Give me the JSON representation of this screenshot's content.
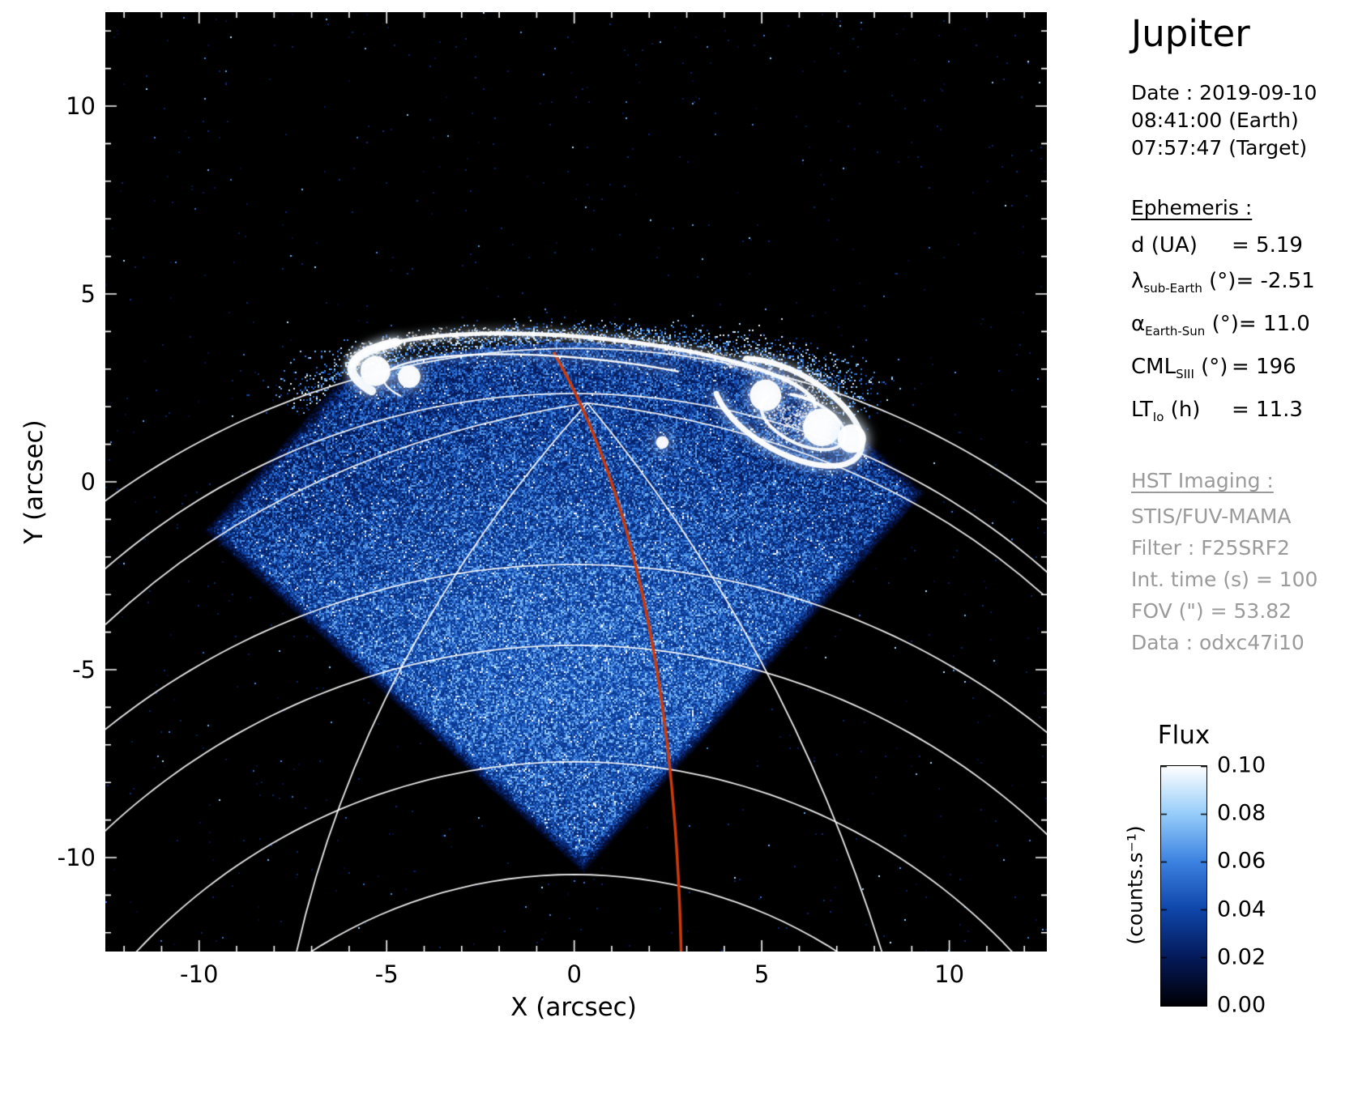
{
  "sidebar": {
    "title": "Jupiter",
    "date_lines": [
      "Date : 2019-09-10",
      "08:41:00 (Earth)",
      "07:57:47 (Target)"
    ],
    "ephemeris": {
      "heading": "Ephemeris :",
      "rows": [
        {
          "symbol": "d",
          "sub": "",
          "unit": "(UA)",
          "eq": "=",
          "value": "5.19"
        },
        {
          "symbol": "λ",
          "sub": "sub-Earth",
          "unit": "(°)",
          "eq": "=",
          "value": "-2.51"
        },
        {
          "symbol": "α",
          "sub": "Earth-Sun",
          "unit": "(°)",
          "eq": "=",
          "value": "11.0"
        },
        {
          "symbol": "CML",
          "sub": "SIII",
          "unit": "(°)",
          "eq": "=",
          "value": "196"
        },
        {
          "symbol": "LT",
          "sub": "Io",
          "unit": "(h)",
          "eq": "=",
          "value": "11.3"
        }
      ]
    },
    "hst": {
      "heading": "HST Imaging :",
      "lines": [
        "STIS/FUV-MAMA",
        "Filter : F25SRF2",
        "Int. time (s) = 100",
        "FOV (\") = 53.82",
        "Data : odxc47i10"
      ]
    }
  },
  "chart_data": {
    "type": "heatmap",
    "subject": "Jupiter FUV aurora (HST STIS/FUV-MAMA image)",
    "title": "Jupiter",
    "xlabel": "X (arcsec)",
    "ylabel": "Y (arcsec)",
    "xlim": [
      -12.5,
      12.6
    ],
    "ylim": [
      -12.5,
      12.5
    ],
    "x_ticks": [
      -10,
      -5,
      0,
      5,
      10
    ],
    "y_ticks": [
      10,
      5,
      0,
      -5,
      -10
    ],
    "background": "#000000",
    "colorbar": {
      "title": "Flux",
      "units_label": "(counts.s⁻¹)",
      "ticks": [
        "0.10",
        "0.08",
        "0.06",
        "0.04",
        "0.02",
        "0.00"
      ],
      "min": 0.0,
      "max": 0.1,
      "colors": [
        "#000006",
        "#051a5a",
        "#0f46aa",
        "#3c82e1",
        "#96cdfa",
        "#ffffff"
      ]
    },
    "overlays": {
      "fov_diamond": {
        "shape": "rotated-square",
        "cx": -0.25,
        "cy": -0.8,
        "half_diagonal": 9.65,
        "rotation_deg": 3
      },
      "planet_limb": {
        "peak_y": 3.55,
        "radius": 21.3
      },
      "lat_arcs": [
        [
          3.55,
          21.3
        ],
        [
          2.35,
          19.1
        ],
        [
          -2.2,
          20.0
        ],
        [
          -4.35,
          18.3
        ],
        [
          -7.45,
          16.0
        ],
        [
          -10.45,
          13.0
        ]
      ],
      "meridians": [
        {
          "from": [
            0.35,
            2.1
          ],
          "ctrl": [
            -7.5,
            0.9
          ],
          "to": [
            -12.5,
            -3.8
          ]
        },
        {
          "from": [
            0.35,
            2.1
          ],
          "ctrl": [
            -5.6,
            -4.5
          ],
          "to": [
            -7.4,
            -12.5
          ]
        },
        {
          "from": [
            0.35,
            2.1
          ],
          "ctrl": [
            5.6,
            -4.2
          ],
          "to": [
            8.2,
            -12.5
          ]
        },
        {
          "from": [
            0.35,
            2.1
          ],
          "ctrl": [
            7.8,
            1.2
          ],
          "to": [
            12.5,
            -3.0
          ]
        }
      ],
      "cml_meridian": {
        "color": "#cc3a0a",
        "from": [
          -0.55,
          3.45
        ],
        "ctrl": [
          2.6,
          -2.0
        ],
        "to": [
          2.85,
          -12.5
        ]
      },
      "aurora_oval": {
        "cx": 0.25,
        "cy": 2.5,
        "rx": 6.2,
        "ry": 1.35,
        "rot_deg": -5
      }
    }
  }
}
